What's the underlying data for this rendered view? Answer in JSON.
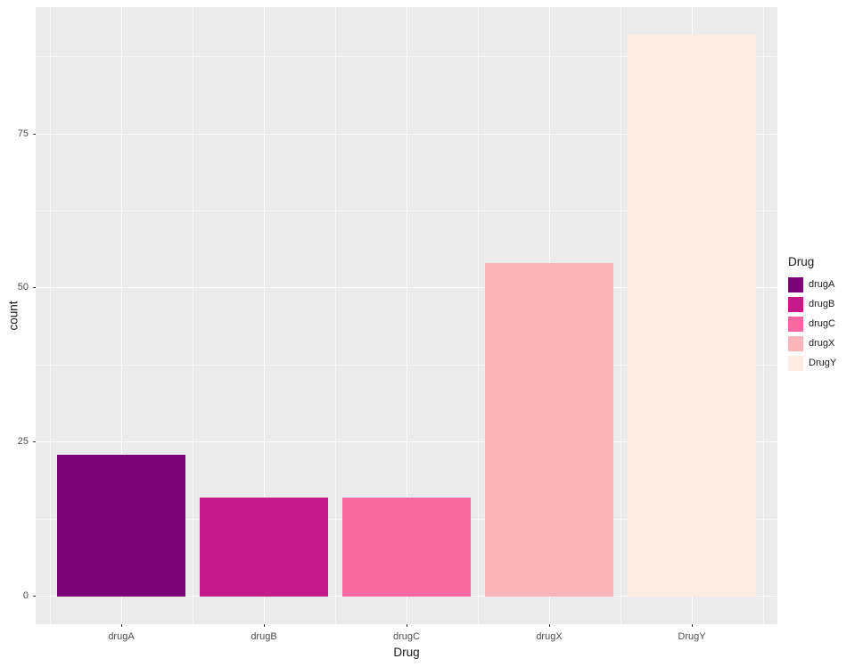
{
  "figure": {
    "background": "#FFFFFF",
    "panel_background": "#EBEBEB",
    "grid_major_color": "#FFFFFF",
    "grid_minor_color": "rgba(255,255,255,0.55)",
    "tick_color": "#333333",
    "tick_label_color": "#4D4D4D",
    "axis_title_color": "#1A1A1A"
  },
  "chart_data": {
    "type": "bar",
    "title": "",
    "xlabel": "Drug",
    "ylabel": "count",
    "categories": [
      "drugA",
      "drugB",
      "drugC",
      "drugX",
      "DrugY"
    ],
    "values": [
      23,
      16,
      16,
      54,
      91
    ],
    "bar_colors": [
      "#7A0177",
      "#C51B8A",
      "#F768A1",
      "#FBB4B9",
      "#FEEBE2"
    ],
    "y_ticks": [
      0,
      25,
      50,
      75
    ],
    "y_minor_ticks": [
      12.5,
      37.5,
      62.5,
      87.5
    ],
    "ylim": [
      -4.55,
      95.55
    ],
    "grid": "major+minor horizontal and vertical, white on grey panel",
    "legend": {
      "title": "Drug",
      "position": "right",
      "entries": [
        {
          "label": "drugA",
          "color": "#7A0177"
        },
        {
          "label": "drugB",
          "color": "#C51B8A"
        },
        {
          "label": "drugC",
          "color": "#F768A1"
        },
        {
          "label": "drugX",
          "color": "#FBB4B9"
        },
        {
          "label": "DrugY",
          "color": "#FEEBE2"
        }
      ]
    }
  }
}
